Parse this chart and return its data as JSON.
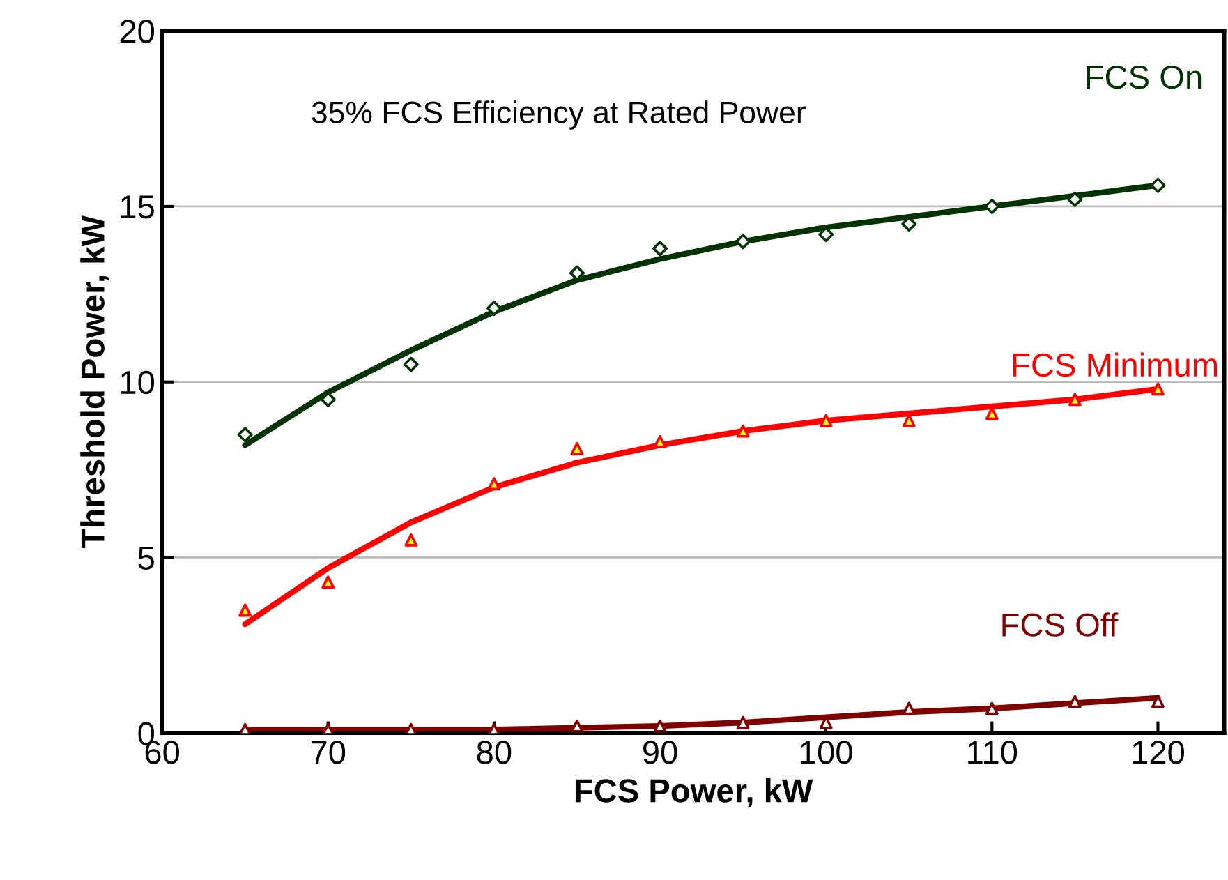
{
  "chart_data": {
    "type": "scatter",
    "xlabel": "FCS Power, kW",
    "ylabel": "Threshold Power, kW",
    "annotations": [
      "35% FCS Efficiency at Rated Power"
    ],
    "xlim": [
      60,
      124
    ],
    "xticks": [
      60,
      70,
      80,
      90,
      100,
      110,
      120
    ],
    "ylim": [
      0,
      20
    ],
    "yticks": [
      0,
      5,
      10,
      15,
      20
    ],
    "grid": "y",
    "legend": false,
    "series": [
      {
        "color": "#003300",
        "marker": "diamond",
        "x": [
          65,
          70,
          75,
          80,
          85,
          90,
          95,
          100,
          105,
          110,
          115,
          120
        ],
        "values": [
          8.5,
          9.5,
          10.5,
          12.1,
          13.1,
          13.8,
          14.0,
          14.2,
          14.5,
          15.0,
          15.2,
          15.6
        ]
      },
      {
        "color": "#ff0000",
        "marker": "triangle",
        "x": [
          65,
          70,
          75,
          80,
          85,
          90,
          95,
          100,
          105,
          110,
          115,
          120
        ],
        "values": [
          3.5,
          4.3,
          5.5,
          7.1,
          8.1,
          8.3,
          8.6,
          8.9,
          8.9,
          9.1,
          9.5,
          9.8
        ]
      },
      {
        "color": "#800000",
        "marker": "triangle",
        "x": [
          65,
          70,
          75,
          80,
          85,
          90,
          95,
          100,
          105,
          110,
          115,
          120
        ],
        "values": [
          0.1,
          0.1,
          0.1,
          0.1,
          0.2,
          0.2,
          0.3,
          0.3,
          0.7,
          0.7,
          0.9,
          0.9
        ]
      },
      {
        "type": "line",
        "name": "FCS On",
        "color": "#003300",
        "x": [
          65,
          70,
          75,
          80,
          85,
          90,
          95,
          100,
          105,
          110,
          115,
          120
        ],
        "values": [
          8.2,
          9.7,
          10.9,
          12.0,
          12.9,
          13.5,
          14.0,
          14.4,
          14.7,
          15.0,
          15.3,
          15.6
        ]
      },
      {
        "type": "line",
        "name": "FCS Minimum",
        "color": "#ff0000",
        "x": [
          65,
          70,
          75,
          80,
          85,
          90,
          95,
          100,
          105,
          110,
          115,
          120
        ],
        "values": [
          3.1,
          4.7,
          6.0,
          7.0,
          7.7,
          8.2,
          8.6,
          8.9,
          9.1,
          9.3,
          9.5,
          9.8
        ]
      },
      {
        "type": "line",
        "name": "FCS Off",
        "color": "#800000",
        "x": [
          65,
          70,
          75,
          80,
          85,
          90,
          95,
          100,
          105,
          110,
          115,
          120
        ],
        "values": [
          0.1,
          0.1,
          0.1,
          0.1,
          0.15,
          0.2,
          0.3,
          0.45,
          0.6,
          0.7,
          0.85,
          1.0
        ]
      }
    ]
  }
}
